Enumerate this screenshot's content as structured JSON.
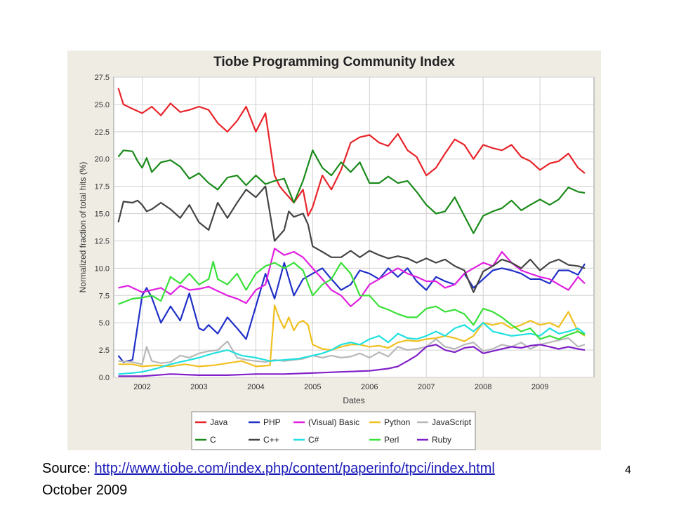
{
  "slide": {
    "source_prefix": "Source: ",
    "source_url": "http://www.tiobe.com/index.php/content/paperinfo/tpci/index.html",
    "date_text": "October 2009",
    "page_number": "4"
  },
  "chart_data": {
    "type": "line",
    "title": "Tiobe Programming Community Index",
    "xlabel": "Dates",
    "ylabel": "Normalized fraction of total hits (%)",
    "xlim": [
      2001.5,
      2009.95
    ],
    "ylim": [
      0,
      27.5
    ],
    "xticks": [
      2002,
      2003,
      2004,
      2005,
      2006,
      2007,
      2008,
      2009
    ],
    "yticks": [
      0.0,
      2.5,
      5.0,
      7.5,
      10.0,
      12.5,
      15.0,
      17.5,
      20.0,
      22.5,
      25.0,
      27.5
    ],
    "grid": true,
    "legend_position": "bottom",
    "series": [
      {
        "name": "Java",
        "color": "#e8242a",
        "x": [
          2001.58,
          2001.67,
          2001.83,
          2002.0,
          2002.17,
          2002.33,
          2002.5,
          2002.67,
          2002.83,
          2003.0,
          2003.17,
          2003.33,
          2003.5,
          2003.67,
          2003.83,
          2004.0,
          2004.17,
          2004.33,
          2004.42,
          2004.5,
          2004.67,
          2004.83,
          2004.92,
          2005.0,
          2005.17,
          2005.33,
          2005.5,
          2005.67,
          2005.83,
          2006.0,
          2006.17,
          2006.33,
          2006.5,
          2006.67,
          2006.83,
          2007.0,
          2007.17,
          2007.33,
          2007.5,
          2007.67,
          2007.83,
          2008.0,
          2008.17,
          2008.33,
          2008.5,
          2008.67,
          2008.83,
          2009.0,
          2009.17,
          2009.33,
          2009.5,
          2009.67,
          2009.79
        ],
        "y": [
          26.5,
          25.0,
          24.6,
          24.2,
          24.8,
          24.0,
          25.1,
          24.3,
          24.5,
          24.8,
          24.5,
          23.3,
          22.5,
          23.5,
          24.8,
          22.5,
          24.2,
          18.5,
          17.5,
          17.0,
          16.0,
          17.2,
          14.8,
          15.6,
          18.5,
          17.2,
          19.0,
          21.5,
          22.0,
          22.2,
          21.5,
          21.2,
          22.3,
          20.8,
          20.2,
          18.5,
          19.2,
          20.5,
          21.8,
          21.3,
          20.0,
          21.3,
          21.0,
          20.8,
          21.3,
          20.2,
          19.8,
          19.0,
          19.6,
          19.8,
          20.5,
          19.2,
          18.7
        ]
      },
      {
        "name": "PHP",
        "color": "#2030c8",
        "x": [
          2001.58,
          2001.67,
          2001.83,
          2002.0,
          2002.08,
          2002.17,
          2002.33,
          2002.5,
          2002.67,
          2002.83,
          2003.0,
          2003.08,
          2003.17,
          2003.33,
          2003.5,
          2003.67,
          2003.83,
          2004.0,
          2004.17,
          2004.33,
          2004.5,
          2004.67,
          2004.83,
          2005.0,
          2005.17,
          2005.33,
          2005.5,
          2005.67,
          2005.83,
          2006.0,
          2006.17,
          2006.33,
          2006.5,
          2006.67,
          2006.83,
          2007.0,
          2007.17,
          2007.33,
          2007.5,
          2007.67,
          2007.83,
          2008.0,
          2008.17,
          2008.33,
          2008.5,
          2008.67,
          2008.83,
          2009.0,
          2009.17,
          2009.33,
          2009.5,
          2009.67,
          2009.79
        ],
        "y": [
          2.0,
          1.4,
          1.6,
          7.5,
          8.2,
          7.3,
          5.0,
          6.5,
          5.2,
          7.7,
          4.5,
          4.3,
          4.8,
          4.0,
          5.5,
          4.5,
          3.5,
          6.5,
          9.5,
          7.2,
          10.5,
          7.5,
          9.0,
          9.5,
          10.0,
          9.0,
          8.0,
          8.5,
          9.8,
          9.5,
          9.0,
          10.0,
          9.2,
          10.0,
          8.8,
          8.0,
          9.2,
          8.8,
          8.5,
          9.5,
          8.2,
          9.0,
          9.8,
          10.0,
          9.8,
          9.5,
          9.0,
          9.0,
          8.6,
          9.8,
          9.8,
          9.4,
          10.4
        ]
      },
      {
        "name": "(Visual) Basic",
        "color": "#e020e0",
        "x": [
          2001.58,
          2001.75,
          2002.0,
          2002.17,
          2002.33,
          2002.5,
          2002.67,
          2002.83,
          2003.0,
          2003.17,
          2003.33,
          2003.5,
          2003.67,
          2003.83,
          2004.0,
          2004.17,
          2004.33,
          2004.5,
          2004.67,
          2004.83,
          2005.0,
          2005.17,
          2005.33,
          2005.5,
          2005.67,
          2005.83,
          2006.0,
          2006.17,
          2006.33,
          2006.5,
          2006.67,
          2006.83,
          2007.0,
          2007.17,
          2007.33,
          2007.5,
          2007.67,
          2007.83,
          2008.0,
          2008.17,
          2008.33,
          2008.5,
          2008.67,
          2008.83,
          2009.0,
          2009.17,
          2009.33,
          2009.5,
          2009.67,
          2009.79
        ],
        "y": [
          8.2,
          8.4,
          7.8,
          8.0,
          8.2,
          7.6,
          8.4,
          8.0,
          8.1,
          8.3,
          7.9,
          7.5,
          7.2,
          6.8,
          8.0,
          8.5,
          11.8,
          11.2,
          11.5,
          11.0,
          10.0,
          9.0,
          8.0,
          7.5,
          6.5,
          7.2,
          8.5,
          9.0,
          9.5,
          10.0,
          9.5,
          9.2,
          8.8,
          8.8,
          8.2,
          8.5,
          9.5,
          10.0,
          10.5,
          10.2,
          11.5,
          10.5,
          9.8,
          9.5,
          9.2,
          9.0,
          8.5,
          8.0,
          9.2,
          8.6
        ]
      },
      {
        "name": "Python",
        "color": "#f0c020",
        "x": [
          2001.58,
          2001.83,
          2002.0,
          2002.25,
          2002.5,
          2002.75,
          2003.0,
          2003.25,
          2003.5,
          2003.75,
          2004.0,
          2004.25,
          2004.33,
          2004.42,
          2004.5,
          2004.58,
          2004.67,
          2004.75,
          2004.83,
          2004.92,
          2005.0,
          2005.17,
          2005.33,
          2005.5,
          2005.67,
          2005.83,
          2006.0,
          2006.17,
          2006.33,
          2006.5,
          2006.67,
          2006.83,
          2007.0,
          2007.17,
          2007.33,
          2007.5,
          2007.67,
          2007.83,
          2008.0,
          2008.17,
          2008.33,
          2008.5,
          2008.67,
          2008.83,
          2009.0,
          2009.17,
          2009.33,
          2009.5,
          2009.67,
          2009.79
        ],
        "y": [
          1.2,
          1.2,
          1.0,
          1.1,
          1.0,
          1.2,
          1.0,
          1.1,
          1.3,
          1.5,
          1.0,
          1.1,
          6.6,
          5.3,
          4.5,
          5.5,
          4.3,
          5.0,
          5.2,
          4.8,
          3.0,
          2.6,
          2.5,
          2.8,
          3.0,
          3.0,
          2.8,
          2.9,
          2.7,
          3.2,
          3.4,
          3.3,
          3.5,
          3.6,
          3.8,
          3.6,
          3.3,
          3.8,
          5.0,
          4.8,
          5.0,
          4.5,
          4.8,
          5.2,
          4.8,
          5.0,
          4.6,
          6.0,
          4.2,
          3.8
        ]
      },
      {
        "name": "JavaScript",
        "color": "#b8b8b8",
        "x": [
          2001.58,
          2001.83,
          2002.0,
          2002.08,
          2002.17,
          2002.33,
          2002.5,
          2002.67,
          2002.83,
          2003.0,
          2003.17,
          2003.33,
          2003.5,
          2003.67,
          2003.83,
          2004.0,
          2004.17,
          2004.33,
          2004.5,
          2004.67,
          2004.83,
          2005.0,
          2005.17,
          2005.33,
          2005.5,
          2005.67,
          2005.83,
          2006.0,
          2006.17,
          2006.33,
          2006.5,
          2006.67,
          2006.83,
          2007.0,
          2007.17,
          2007.33,
          2007.5,
          2007.67,
          2007.83,
          2008.0,
          2008.17,
          2008.33,
          2008.5,
          2008.67,
          2008.83,
          2009.0,
          2009.17,
          2009.33,
          2009.5,
          2009.67,
          2009.79
        ],
        "y": [
          1.5,
          1.4,
          1.2,
          2.8,
          1.5,
          1.3,
          1.4,
          2.0,
          1.8,
          2.2,
          2.4,
          2.5,
          3.3,
          1.8,
          1.6,
          1.5,
          1.4,
          1.6,
          1.5,
          1.6,
          1.7,
          2.0,
          1.8,
          2.0,
          1.8,
          1.9,
          2.2,
          1.8,
          2.3,
          1.9,
          2.8,
          2.5,
          2.6,
          2.8,
          3.5,
          2.8,
          2.6,
          3.0,
          3.2,
          2.4,
          2.6,
          3.0,
          2.8,
          3.2,
          2.6,
          3.0,
          3.2,
          3.4,
          3.6,
          2.8,
          3.0
        ]
      },
      {
        "name": "C",
        "color": "#1a8a1a",
        "x": [
          2001.58,
          2001.67,
          2001.83,
          2001.92,
          2002.0,
          2002.08,
          2002.17,
          2002.33,
          2002.5,
          2002.67,
          2002.83,
          2003.0,
          2003.17,
          2003.33,
          2003.5,
          2003.67,
          2003.83,
          2004.0,
          2004.17,
          2004.33,
          2004.5,
          2004.67,
          2004.83,
          2005.0,
          2005.17,
          2005.33,
          2005.5,
          2005.67,
          2005.83,
          2006.0,
          2006.17,
          2006.33,
          2006.5,
          2006.67,
          2006.83,
          2007.0,
          2007.17,
          2007.33,
          2007.5,
          2007.67,
          2007.83,
          2008.0,
          2008.17,
          2008.33,
          2008.5,
          2008.67,
          2008.83,
          2009.0,
          2009.17,
          2009.33,
          2009.5,
          2009.67,
          2009.79
        ],
        "y": [
          20.2,
          20.8,
          20.7,
          19.8,
          19.2,
          20.1,
          18.8,
          19.7,
          19.9,
          19.3,
          18.2,
          18.7,
          17.8,
          17.2,
          18.3,
          18.5,
          17.6,
          18.5,
          17.7,
          18.0,
          18.2,
          16.0,
          18.0,
          20.8,
          19.2,
          18.5,
          19.7,
          18.8,
          19.7,
          17.8,
          17.8,
          18.4,
          17.8,
          18.0,
          17.0,
          15.8,
          15.0,
          15.2,
          16.5,
          14.8,
          13.2,
          14.8,
          15.2,
          15.5,
          16.2,
          15.3,
          15.8,
          16.3,
          15.8,
          16.3,
          17.4,
          17.0,
          16.9
        ]
      },
      {
        "name": "C++",
        "color": "#444444",
        "x": [
          2001.58,
          2001.67,
          2001.83,
          2001.92,
          2002.0,
          2002.08,
          2002.17,
          2002.33,
          2002.5,
          2002.67,
          2002.83,
          2003.0,
          2003.17,
          2003.33,
          2003.5,
          2003.67,
          2003.83,
          2004.0,
          2004.17,
          2004.33,
          2004.5,
          2004.58,
          2004.67,
          2004.83,
          2004.92,
          2005.0,
          2005.17,
          2005.33,
          2005.5,
          2005.67,
          2005.83,
          2006.0,
          2006.17,
          2006.33,
          2006.5,
          2006.67,
          2006.83,
          2007.0,
          2007.17,
          2007.33,
          2007.5,
          2007.67,
          2007.83,
          2008.0,
          2008.17,
          2008.33,
          2008.5,
          2008.67,
          2008.83,
          2009.0,
          2009.17,
          2009.33,
          2009.5,
          2009.67,
          2009.79
        ],
        "y": [
          14.2,
          16.1,
          16.0,
          16.2,
          15.8,
          15.2,
          15.4,
          16.0,
          15.4,
          14.6,
          15.8,
          14.2,
          13.5,
          16.0,
          14.6,
          16.0,
          17.2,
          16.5,
          17.5,
          12.5,
          13.5,
          15.2,
          14.7,
          15.0,
          14.0,
          12.0,
          11.5,
          11.0,
          11.0,
          11.6,
          11.0,
          11.6,
          11.2,
          10.9,
          11.1,
          10.9,
          10.5,
          10.9,
          10.5,
          10.8,
          10.2,
          9.8,
          7.8,
          9.7,
          10.2,
          10.8,
          10.5,
          10.0,
          10.8,
          9.8,
          10.5,
          10.8,
          10.3,
          10.2,
          10.0
        ]
      },
      {
        "name": "C#",
        "color": "#20e0e0",
        "x": [
          2001.58,
          2001.83,
          2002.0,
          2002.25,
          2002.5,
          2002.75,
          2003.0,
          2003.25,
          2003.5,
          2003.75,
          2004.0,
          2004.25,
          2004.5,
          2004.75,
          2005.0,
          2005.17,
          2005.33,
          2005.5,
          2005.67,
          2005.83,
          2006.0,
          2006.17,
          2006.33,
          2006.5,
          2006.67,
          2006.83,
          2007.0,
          2007.17,
          2007.33,
          2007.5,
          2007.67,
          2007.83,
          2008.0,
          2008.17,
          2008.33,
          2008.5,
          2008.67,
          2008.83,
          2009.0,
          2009.17,
          2009.33,
          2009.5,
          2009.67,
          2009.79
        ],
        "y": [
          0.3,
          0.4,
          0.5,
          0.8,
          1.2,
          1.5,
          1.8,
          2.2,
          2.5,
          2.0,
          1.8,
          1.5,
          1.6,
          1.7,
          2.0,
          2.2,
          2.5,
          3.0,
          3.2,
          3.0,
          3.5,
          3.8,
          3.2,
          4.0,
          3.6,
          3.5,
          3.8,
          4.2,
          3.8,
          4.5,
          4.8,
          4.2,
          5.0,
          4.2,
          4.0,
          3.8,
          3.9,
          4.0,
          3.8,
          4.5,
          4.0,
          4.2,
          4.5,
          4.0
        ]
      },
      {
        "name": "Perl",
        "color": "#38e038",
        "x": [
          2001.58,
          2001.83,
          2002.0,
          2002.17,
          2002.33,
          2002.5,
          2002.67,
          2002.83,
          2003.0,
          2003.17,
          2003.25,
          2003.33,
          2003.5,
          2003.67,
          2003.83,
          2004.0,
          2004.17,
          2004.33,
          2004.5,
          2004.67,
          2004.83,
          2005.0,
          2005.17,
          2005.33,
          2005.5,
          2005.67,
          2005.83,
          2006.0,
          2006.17,
          2006.33,
          2006.5,
          2006.67,
          2006.83,
          2007.0,
          2007.17,
          2007.33,
          2007.5,
          2007.67,
          2007.83,
          2008.0,
          2008.17,
          2008.33,
          2008.5,
          2008.67,
          2008.83,
          2009.0,
          2009.17,
          2009.33,
          2009.5,
          2009.67,
          2009.79
        ],
        "y": [
          6.7,
          7.2,
          7.3,
          7.5,
          7.0,
          9.2,
          8.6,
          9.5,
          8.5,
          9.0,
          10.6,
          9.0,
          8.5,
          9.5,
          8.0,
          9.5,
          10.2,
          10.5,
          10.0,
          10.5,
          9.8,
          7.5,
          8.5,
          9.0,
          10.5,
          9.5,
          7.5,
          7.5,
          6.5,
          6.2,
          5.8,
          5.5,
          5.5,
          6.3,
          6.5,
          6.0,
          6.2,
          5.8,
          4.8,
          6.3,
          6.0,
          5.5,
          4.8,
          4.2,
          4.5,
          3.5,
          3.8,
          3.5,
          3.9,
          4.2,
          3.9
        ]
      },
      {
        "name": "Ruby",
        "color": "#8020c8",
        "x": [
          2001.58,
          2002.0,
          2002.5,
          2003.0,
          2003.5,
          2004.0,
          2004.5,
          2005.0,
          2005.5,
          2006.0,
          2006.33,
          2006.5,
          2006.67,
          2006.83,
          2007.0,
          2007.17,
          2007.33,
          2007.5,
          2007.67,
          2007.83,
          2008.0,
          2008.17,
          2008.33,
          2008.5,
          2008.67,
          2008.83,
          2009.0,
          2009.17,
          2009.33,
          2009.5,
          2009.67,
          2009.79
        ],
        "y": [
          0.1,
          0.1,
          0.3,
          0.2,
          0.2,
          0.3,
          0.3,
          0.4,
          0.5,
          0.6,
          0.8,
          1.0,
          1.5,
          2.0,
          2.8,
          3.0,
          2.5,
          2.3,
          2.7,
          2.8,
          2.2,
          2.4,
          2.6,
          2.8,
          2.7,
          2.9,
          3.0,
          2.8,
          2.6,
          2.8,
          2.6,
          2.5
        ]
      }
    ]
  }
}
